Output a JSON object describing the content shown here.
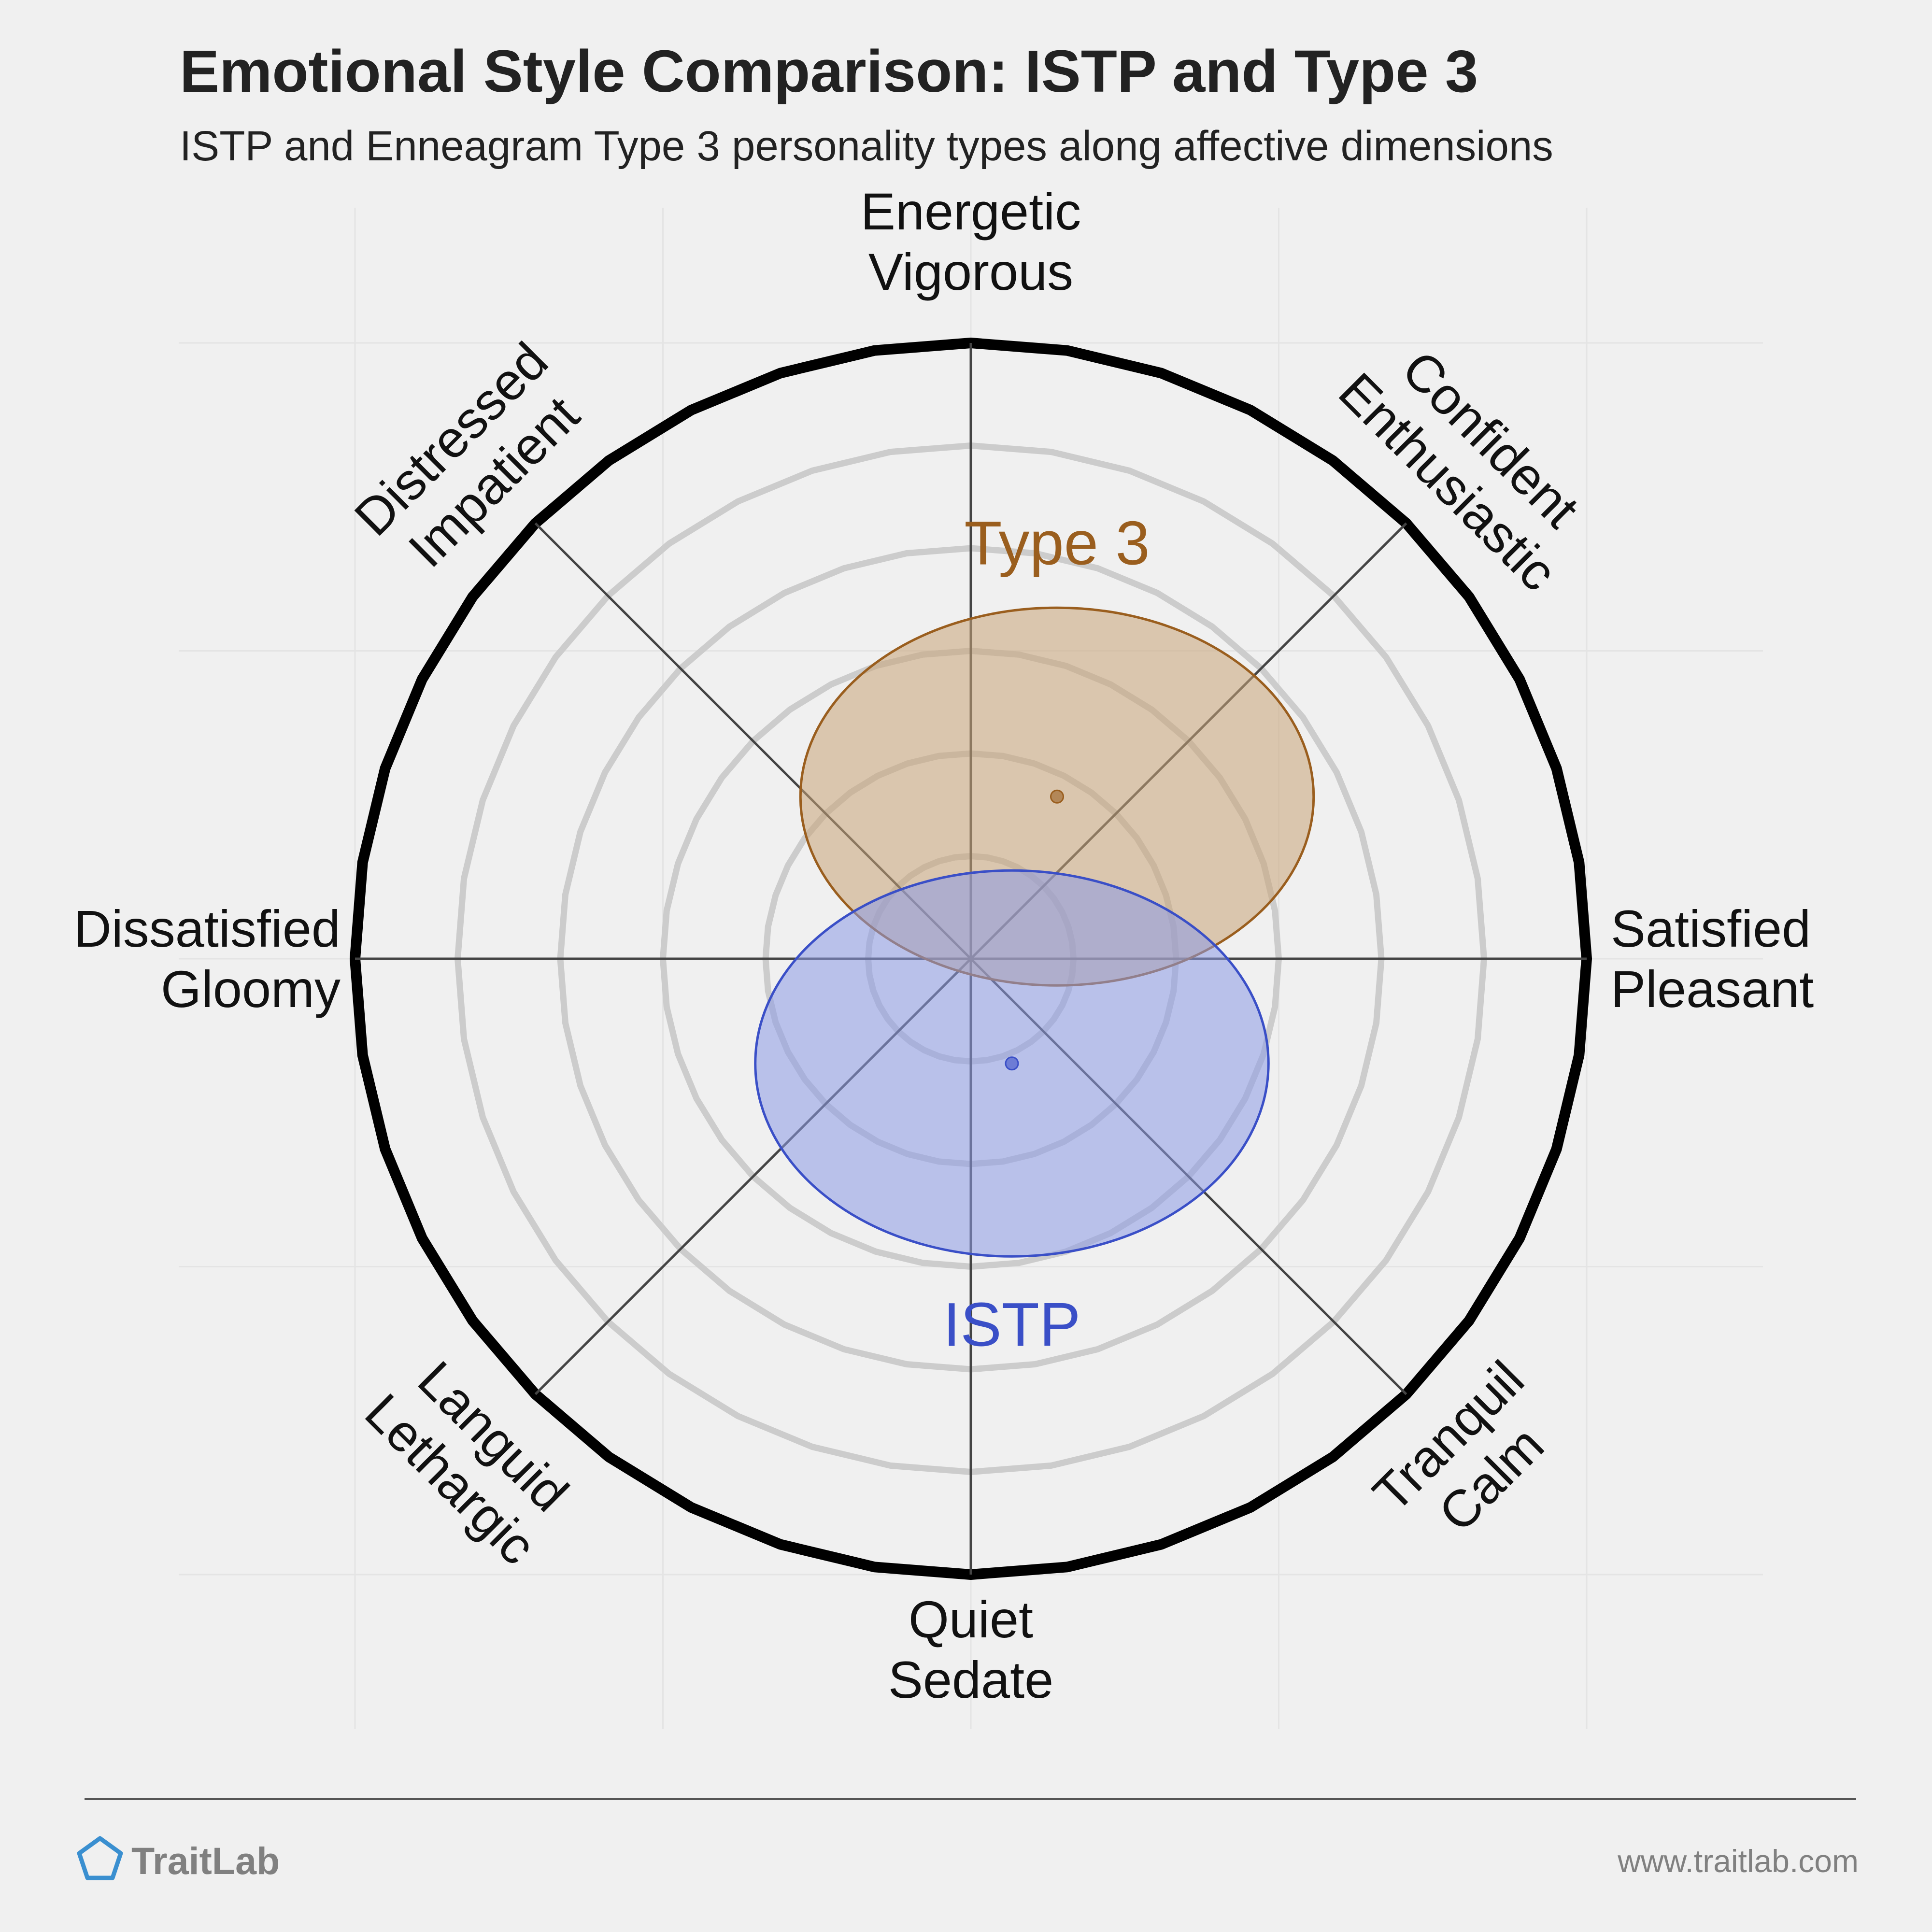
{
  "header": {
    "title": "Emotional Style Comparison: ISTP and Type 3",
    "subtitle": "ISTP and Enneagram Type 3 personality types along affective dimensions"
  },
  "footer": {
    "brand": "TraitLab",
    "brand_icon": "pentagon-logo-icon",
    "url": "www.traitlab.com"
  },
  "colors": {
    "background": "#f0f0f0",
    "ring": "#cccccc",
    "outer_ring": "#000000",
    "axis": "#444444",
    "istp": "#3a4fc7",
    "type3": "#9a5e1e",
    "brand": "#3a8fd0"
  },
  "chart_data": {
    "type": "scatter",
    "coordinate_system": "circumplex",
    "range": [
      -3,
      3
    ],
    "grid": "concentric rings and diagonal axes",
    "axes": [
      {
        "id": "energetic",
        "angle": 90,
        "lines": [
          "Energetic",
          "Vigorous"
        ]
      },
      {
        "id": "confident",
        "angle": 45,
        "lines": [
          "Confident",
          "Enthusiastic"
        ]
      },
      {
        "id": "satisfied",
        "angle": 0,
        "lines": [
          "Satisfied",
          "Pleasant"
        ]
      },
      {
        "id": "tranquil",
        "angle": -45,
        "lines": [
          "Tranquil",
          "Calm"
        ]
      },
      {
        "id": "quiet",
        "angle": -90,
        "lines": [
          "Quiet",
          "Sedate"
        ]
      },
      {
        "id": "languid",
        "angle": -135,
        "lines": [
          "Languid",
          "Lethargic"
        ]
      },
      {
        "id": "dissatisfied",
        "angle": 180,
        "lines": [
          "Dissatisfied",
          "Gloomy"
        ]
      },
      {
        "id": "distressed",
        "angle": 135,
        "lines": [
          "Distressed",
          "Impatient"
        ]
      }
    ],
    "series": [
      {
        "name": "Type 3",
        "x": 0.42,
        "y": 0.79,
        "x_spread": 1.25,
        "y_spread": 0.92
      },
      {
        "name": "ISTP",
        "x": 0.2,
        "y": -0.51,
        "x_spread": 1.25,
        "y_spread": 0.94
      }
    ]
  }
}
